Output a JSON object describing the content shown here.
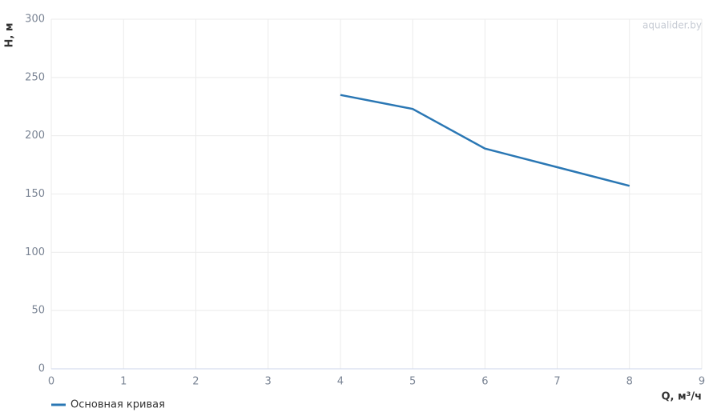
{
  "chart_data": {
    "type": "line",
    "x": [
      4,
      5,
      6,
      7,
      8
    ],
    "series": [
      {
        "name": "Основная кривая",
        "color": "#2a77b4",
        "values": [
          235,
          223,
          189,
          173,
          157
        ]
      }
    ],
    "xlim": [
      0,
      9
    ],
    "xticks": [
      0,
      1,
      2,
      3,
      4,
      5,
      6,
      7,
      8,
      9
    ],
    "ylim": [
      0,
      300
    ],
    "yticks": [
      0,
      50,
      100,
      150,
      200,
      250,
      300
    ],
    "x_label": "Q, м³/ч",
    "y_label": "H, м",
    "watermark": "aqualider.by",
    "grid": true
  }
}
